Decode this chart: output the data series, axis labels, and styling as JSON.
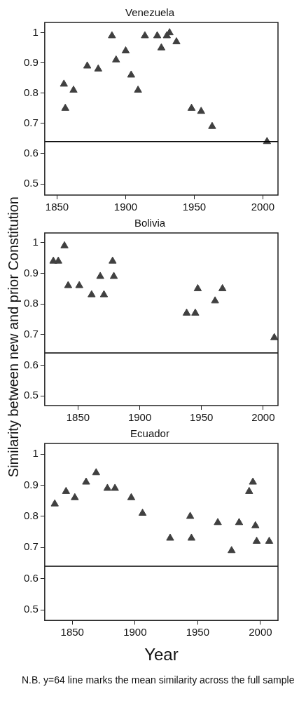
{
  "chart_data": [
    {
      "type": "scatter",
      "title": "Venezuela",
      "marker": "triangle",
      "grid": false,
      "legend": false,
      "series": [
        {
          "color": "#404040",
          "x": [
            1855,
            1856,
            1862,
            1872,
            1880,
            1890,
            1893,
            1900,
            1904,
            1909,
            1914,
            1923,
            1926,
            1930,
            1932,
            1937,
            1948,
            1955,
            1963,
            2003
          ],
          "values": [
            0.83,
            0.75,
            0.81,
            0.89,
            0.88,
            0.99,
            0.91,
            0.94,
            0.86,
            0.81,
            0.99,
            0.99,
            0.95,
            0.99,
            1.0,
            0.97,
            0.75,
            0.74,
            0.69,
            0.64
          ]
        }
      ],
      "xlim": [
        1841,
        2011
      ],
      "xticks": [
        1850,
        1900,
        1950,
        2000
      ],
      "ylim": [
        0.463,
        1.034
      ],
      "yticks": [
        0.5,
        0.6,
        0.7,
        0.8,
        0.9,
        1
      ],
      "ref_lines": [
        {
          "axis": "y",
          "value": 0.64,
          "color": "#000000"
        }
      ]
    },
    {
      "type": "scatter",
      "title": "Bolivia",
      "ylabel": "Similarity between new and prior Constitution",
      "marker": "triangle",
      "grid": false,
      "legend": false,
      "series": [
        {
          "color": "#404040",
          "x": [
            1830,
            1834,
            1839,
            1842,
            1851,
            1861,
            1868,
            1871,
            1878,
            1879,
            1938,
            1945,
            1947,
            1961,
            1967,
            2009
          ],
          "values": [
            0.94,
            0.94,
            0.99,
            0.86,
            0.86,
            0.83,
            0.89,
            0.83,
            0.94,
            0.89,
            0.77,
            0.77,
            0.85,
            0.81,
            0.85,
            0.69
          ]
        }
      ],
      "xlim": [
        1823,
        2012
      ],
      "xticks": [
        1850,
        1900,
        1950,
        2000
      ],
      "ylim": [
        0.468,
        1.032
      ],
      "yticks": [
        0.5,
        0.6,
        0.7,
        0.8,
        0.9,
        1
      ],
      "ref_lines": [
        {
          "axis": "y",
          "value": 0.64,
          "color": "#000000"
        }
      ]
    },
    {
      "type": "scatter",
      "title": "Ecuador",
      "xlabel": "Year",
      "marker": "triangle",
      "grid": false,
      "legend": false,
      "series": [
        {
          "color": "#404040",
          "x": [
            1836,
            1845,
            1852,
            1861,
            1869,
            1878,
            1884,
            1897,
            1906,
            1928,
            1944,
            1945,
            1966,
            1977,
            1983,
            1991,
            1994,
            1996,
            1997,
            2007
          ],
          "values": [
            0.84,
            0.88,
            0.86,
            0.91,
            0.94,
            0.89,
            0.89,
            0.86,
            0.81,
            0.73,
            0.8,
            0.73,
            0.78,
            0.69,
            0.78,
            0.88,
            0.91,
            0.77,
            0.72,
            0.72
          ]
        }
      ],
      "xlim": [
        1828,
        2014
      ],
      "xticks": [
        1850,
        1900,
        1950,
        2000
      ],
      "ylim": [
        0.466,
        1.034
      ],
      "yticks": [
        0.5,
        0.6,
        0.7,
        0.8,
        0.9,
        1
      ],
      "ref_lines": [
        {
          "axis": "y",
          "value": 0.64,
          "color": "#000000"
        }
      ],
      "annotations": [
        "N.B. y=64 line marks the mean similarity across the full sample"
      ]
    }
  ]
}
